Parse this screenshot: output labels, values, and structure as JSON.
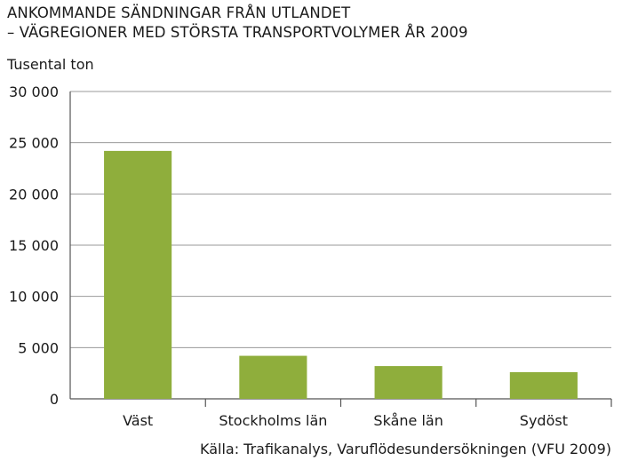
{
  "chart_data": {
    "type": "bar",
    "title_line1": "ANKOMMANDE SÄNDNINGAR FRÅN UTLANDET",
    "title_line2": "– VÄGREGIONER MED STÖRSTA TRANSPORTVOLYMER ÅR 2009",
    "ylabel": "Tusental ton",
    "categories": [
      "Väst",
      "Stockholms län",
      "Skåne län",
      "Sydöst"
    ],
    "values": [
      24200,
      4200,
      3200,
      2600
    ],
    "ylim": [
      0,
      30000
    ],
    "yticks": [
      0,
      5000,
      10000,
      15000,
      20000,
      25000,
      30000
    ],
    "ytick_labels": [
      "0",
      "5 000",
      "10 000",
      "15 000",
      "20 000",
      "25 000",
      "30 000"
    ],
    "grid": true,
    "bar_color": "#8fae3c",
    "grid_color": "#9a9a9a",
    "source": "Källa: Trafikanalys, Varuflödesundersökningen (VFU 2009)"
  }
}
